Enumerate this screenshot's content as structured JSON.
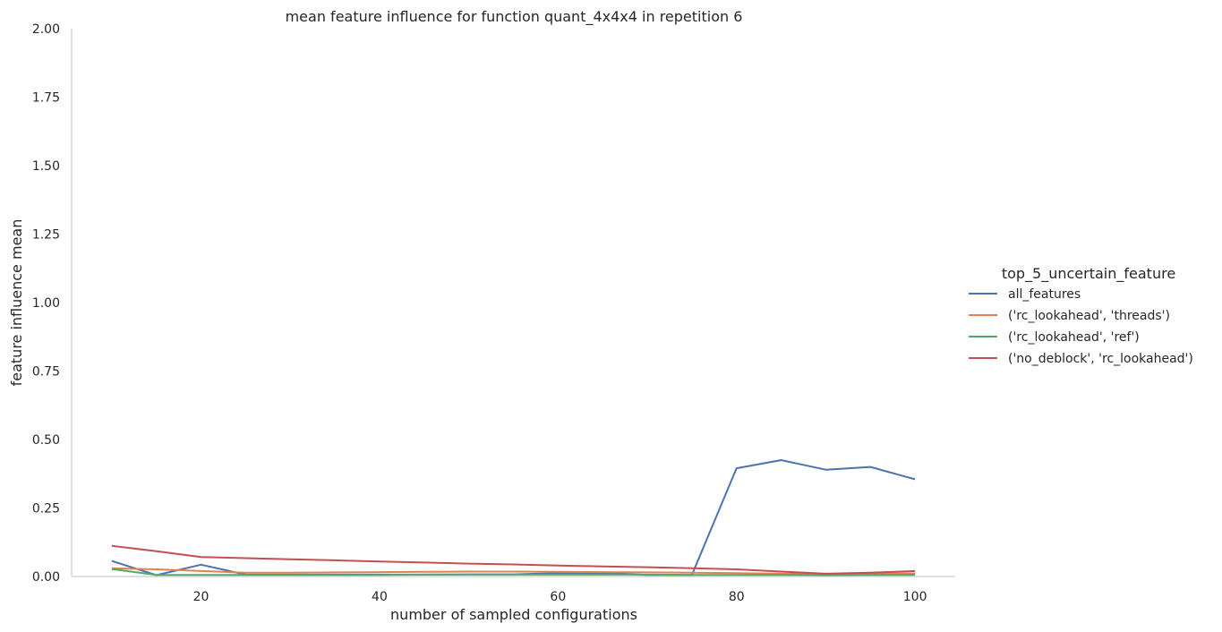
{
  "chart_data": {
    "type": "line",
    "title": "mean feature influence for function quant_4x4x4 in repetition 6",
    "xlabel": "number of sampled configurations",
    "ylabel": "feature influence mean",
    "xlim": [
      5.5,
      104.5
    ],
    "ylim": [
      0,
      2
    ],
    "xticks": [
      20,
      40,
      60,
      80,
      100
    ],
    "yticks": [
      "0.00",
      "0.25",
      "0.50",
      "0.75",
      "1.00",
      "1.25",
      "1.50",
      "1.75",
      "2.00"
    ],
    "grid": false,
    "legend": {
      "title": "top_5_uncertain_feature",
      "placement": "right"
    },
    "series": [
      {
        "name": "all_features",
        "color": "#4c72b0",
        "x": [
          10,
          15,
          20,
          25,
          30,
          35,
          40,
          45,
          50,
          55,
          60,
          65,
          70,
          75,
          80,
          85,
          90,
          95,
          100
        ],
        "values": [
          0.057,
          0.005,
          0.043,
          0.007,
          0.007,
          0.007,
          0.007,
          0.007,
          0.008,
          0.008,
          0.012,
          0.013,
          0.006,
          0.006,
          0.395,
          0.425,
          0.39,
          0.4,
          0.355
        ]
      },
      {
        "name": "('rc_lookahead', 'threads')",
        "color": "#dd8452",
        "x": [
          10,
          15,
          20,
          25,
          30,
          35,
          40,
          45,
          50,
          55,
          60,
          65,
          70,
          75,
          80,
          85,
          90,
          95,
          100
        ],
        "values": [
          0.03,
          0.026,
          0.02,
          0.014,
          0.014,
          0.015,
          0.016,
          0.017,
          0.018,
          0.018,
          0.017,
          0.016,
          0.015,
          0.014,
          0.012,
          0.01,
          0.009,
          0.01,
          0.011
        ]
      },
      {
        "name": "('rc_lookahead', 'ref')",
        "color": "#55a868",
        "x": [
          10,
          15,
          20,
          25,
          30,
          35,
          40,
          45,
          50,
          55,
          60,
          65,
          70,
          75,
          80,
          85,
          90,
          95,
          100
        ],
        "values": [
          0.027,
          0.006,
          0.006,
          0.006,
          0.006,
          0.006,
          0.006,
          0.007,
          0.007,
          0.007,
          0.007,
          0.007,
          0.007,
          0.006,
          0.006,
          0.006,
          0.005,
          0.006,
          0.006
        ]
      },
      {
        "name": "('no_deblock', 'rc_lookahead')",
        "color": "#c44e52",
        "x": [
          10,
          15,
          20,
          25,
          30,
          35,
          40,
          45,
          50,
          55,
          60,
          65,
          70,
          75,
          80,
          85,
          90,
          95,
          100
        ],
        "values": [
          0.112,
          0.092,
          0.071,
          0.067,
          0.063,
          0.059,
          0.055,
          0.051,
          0.047,
          0.044,
          0.04,
          0.037,
          0.034,
          0.03,
          0.026,
          0.018,
          0.01,
          0.014,
          0.02
        ]
      }
    ]
  }
}
